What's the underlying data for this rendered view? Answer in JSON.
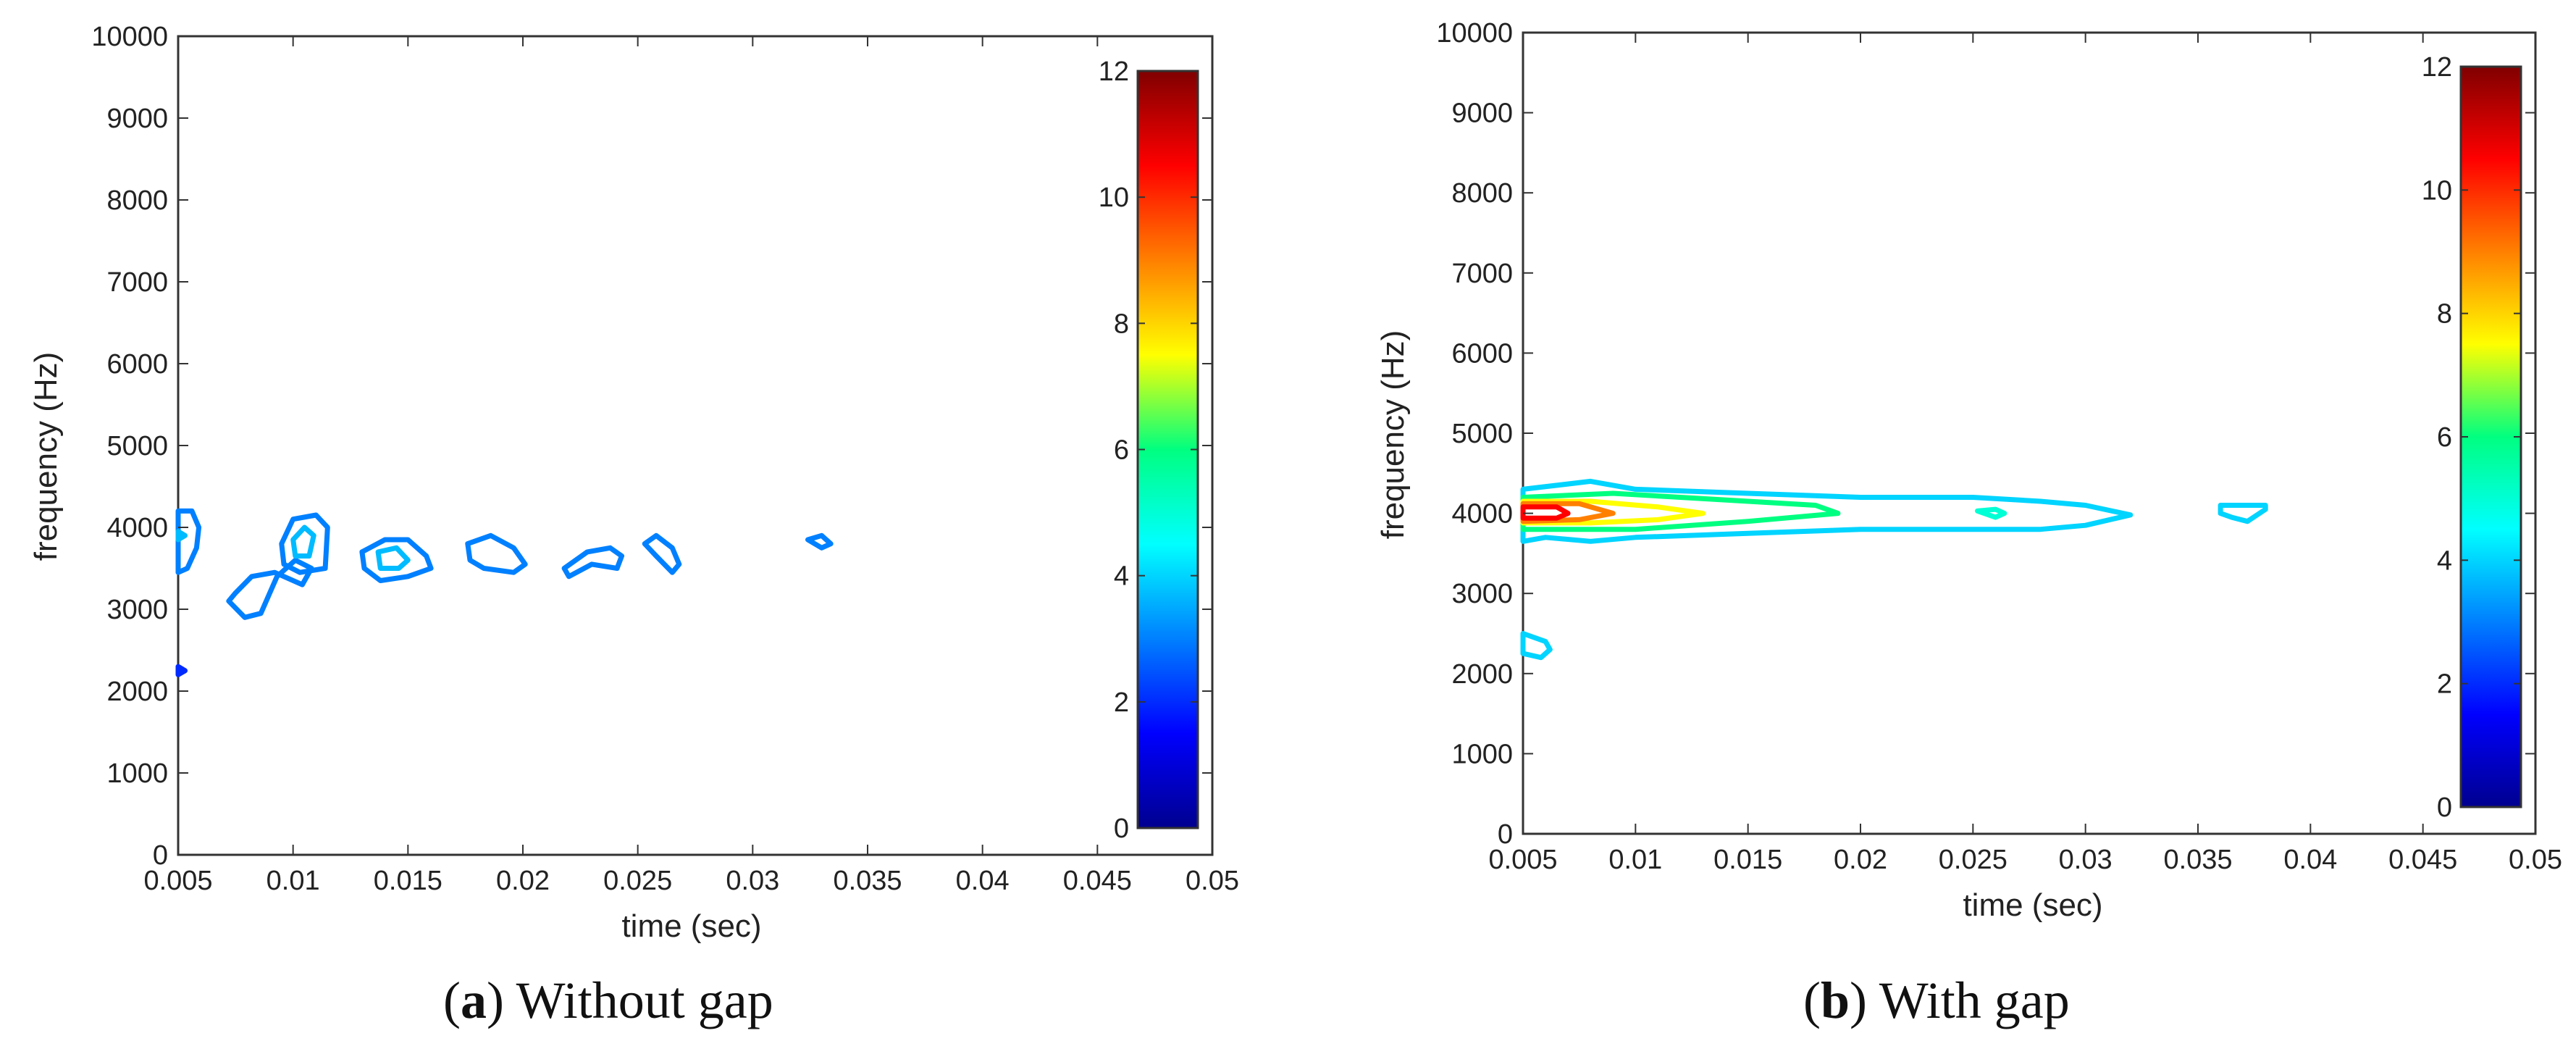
{
  "chart_data": [
    {
      "type": "contour",
      "caption_letter": "a",
      "caption_text": "Without gap",
      "xlabel": "time (sec)",
      "ylabel": "frequency (Hz)",
      "xlim": [
        0.005,
        0.05
      ],
      "ylim": [
        0,
        10000
      ],
      "xticks": [
        "0.005",
        "0.01",
        "0.015",
        "0.02",
        "0.025",
        "0.03",
        "0.035",
        "0.04",
        "0.045",
        "0.05"
      ],
      "yticks": [
        "0",
        "1000",
        "2000",
        "3000",
        "4000",
        "5000",
        "6000",
        "7000",
        "8000",
        "9000",
        "10000"
      ],
      "colorbar": {
        "min": 0,
        "max": 12,
        "ticks": [
          "0",
          "2",
          "4",
          "6",
          "8",
          "10",
          "12"
        ]
      },
      "contours": [
        {
          "level": 3,
          "t": [
            0.005,
            0.0056,
            0.0059,
            0.0058,
            0.0054,
            0.005
          ],
          "f": [
            4200,
            4200,
            4000,
            3750,
            3500,
            3450
          ]
        },
        {
          "level": 3.7,
          "t": [
            0.005,
            0.0053,
            0.005
          ],
          "f": [
            3950,
            3900,
            3850
          ]
        },
        {
          "level": 2,
          "t": [
            0.005,
            0.0053,
            0.005
          ],
          "f": [
            2300,
            2250,
            2200
          ]
        },
        {
          "level": 3,
          "t": [
            0.0072,
            0.0079,
            0.0086,
            0.0093,
            0.0101,
            0.0108,
            0.0104,
            0.0092,
            0.0082,
            0.0075,
            0.0072
          ],
          "f": [
            3100,
            2900,
            2950,
            3400,
            3600,
            3500,
            3300,
            3450,
            3400,
            3200,
            3100
          ]
        },
        {
          "level": 3,
          "t": [
            0.0095,
            0.01,
            0.011,
            0.0115,
            0.0114,
            0.0103,
            0.0096,
            0.0095
          ],
          "f": [
            3800,
            4100,
            4150,
            4000,
            3500,
            3450,
            3550,
            3800
          ]
        },
        {
          "level": 3.7,
          "t": [
            0.01,
            0.0105,
            0.0109,
            0.0107,
            0.0101,
            0.01
          ],
          "f": [
            3850,
            4000,
            3900,
            3650,
            3650,
            3850
          ]
        },
        {
          "level": 3,
          "t": [
            0.013,
            0.014,
            0.015,
            0.0158,
            0.016,
            0.015,
            0.0138,
            0.0131,
            0.013
          ],
          "f": [
            3700,
            3850,
            3850,
            3650,
            3500,
            3400,
            3350,
            3500,
            3700
          ]
        },
        {
          "level": 3.7,
          "t": [
            0.0137,
            0.0145,
            0.015,
            0.0146,
            0.0138,
            0.0137
          ],
          "f": [
            3700,
            3750,
            3600,
            3500,
            3500,
            3700
          ]
        },
        {
          "level": 3,
          "t": [
            0.0176,
            0.0186,
            0.0196,
            0.0201,
            0.0196,
            0.0183,
            0.0177,
            0.0176
          ],
          "f": [
            3800,
            3900,
            3750,
            3550,
            3450,
            3500,
            3600,
            3800
          ]
        },
        {
          "level": 3,
          "t": [
            0.0218,
            0.0228,
            0.0238,
            0.0243,
            0.0241,
            0.023,
            0.022,
            0.0218
          ],
          "f": [
            3500,
            3700,
            3750,
            3650,
            3500,
            3550,
            3400,
            3500
          ]
        },
        {
          "level": 3,
          "t": [
            0.0253,
            0.0258,
            0.0265,
            0.0268,
            0.0265,
            0.0258,
            0.0253
          ],
          "f": [
            3800,
            3900,
            3750,
            3550,
            3450,
            3650,
            3800
          ]
        },
        {
          "level": 3,
          "t": [
            0.0324,
            0.033,
            0.0334,
            0.033,
            0.0324
          ],
          "f": [
            3850,
            3900,
            3800,
            3750,
            3850
          ]
        }
      ]
    },
    {
      "type": "contour",
      "caption_letter": "b",
      "caption_text": "With gap",
      "xlabel": "time (sec)",
      "ylabel": "frequency (Hz)",
      "xlim": [
        0.005,
        0.05
      ],
      "ylim": [
        0,
        10000
      ],
      "xticks": [
        "0.005",
        "0.01",
        "0.015",
        "0.02",
        "0.025",
        "0.03",
        "0.035",
        "0.04",
        "0.045",
        "0.05"
      ],
      "yticks": [
        "0",
        "1000",
        "2000",
        "3000",
        "4000",
        "5000",
        "6000",
        "7000",
        "8000",
        "9000",
        "10000"
      ],
      "colorbar": {
        "min": 0,
        "max": 12,
        "ticks": [
          "0",
          "2",
          "4",
          "6",
          "8",
          "10",
          "12"
        ]
      },
      "contours": [
        {
          "level": 4,
          "t": [
            0.005,
            0.008,
            0.01,
            0.015,
            0.02,
            0.025,
            0.028,
            0.03,
            0.032,
            0.03,
            0.028,
            0.025,
            0.02,
            0.015,
            0.01,
            0.008,
            0.006,
            0.005
          ],
          "f": [
            4300,
            4400,
            4300,
            4250,
            4200,
            4200,
            4150,
            4100,
            3980,
            3850,
            3800,
            3800,
            3800,
            3750,
            3700,
            3650,
            3700,
            3650
          ]
        },
        {
          "level": 4,
          "t": [
            0.005,
            0.006,
            0.0062,
            0.0058,
            0.005
          ],
          "f": [
            2500,
            2400,
            2300,
            2200,
            2250
          ]
        },
        {
          "level": 4,
          "t": [
            0.036,
            0.038,
            0.038,
            0.0372,
            0.0365,
            0.036
          ],
          "f": [
            4100,
            4100,
            4050,
            3900,
            3950,
            4000
          ]
        },
        {
          "level": 6,
          "t": [
            0.005,
            0.009,
            0.015,
            0.018,
            0.019,
            0.015,
            0.01,
            0.007,
            0.005
          ],
          "f": [
            4200,
            4250,
            4150,
            4100,
            4000,
            3900,
            3800,
            3800,
            3800
          ]
        },
        {
          "level": 5,
          "t": [
            0.0252,
            0.026,
            0.0264,
            0.026,
            0.0252
          ],
          "f": [
            4030,
            4050,
            4000,
            3950,
            4030
          ]
        },
        {
          "level": 7.5,
          "t": [
            0.005,
            0.008,
            0.011,
            0.013,
            0.011,
            0.008,
            0.005
          ],
          "f": [
            4150,
            4150,
            4080,
            4000,
            3920,
            3880,
            3880
          ]
        },
        {
          "level": 9,
          "t": [
            0.005,
            0.0075,
            0.009,
            0.0075,
            0.005
          ],
          "f": [
            4120,
            4120,
            4000,
            3920,
            3900
          ]
        },
        {
          "level": 10.5,
          "t": [
            0.005,
            0.0065,
            0.007,
            0.0065,
            0.005
          ],
          "f": [
            4080,
            4080,
            4000,
            3940,
            3940
          ]
        }
      ]
    }
  ]
}
